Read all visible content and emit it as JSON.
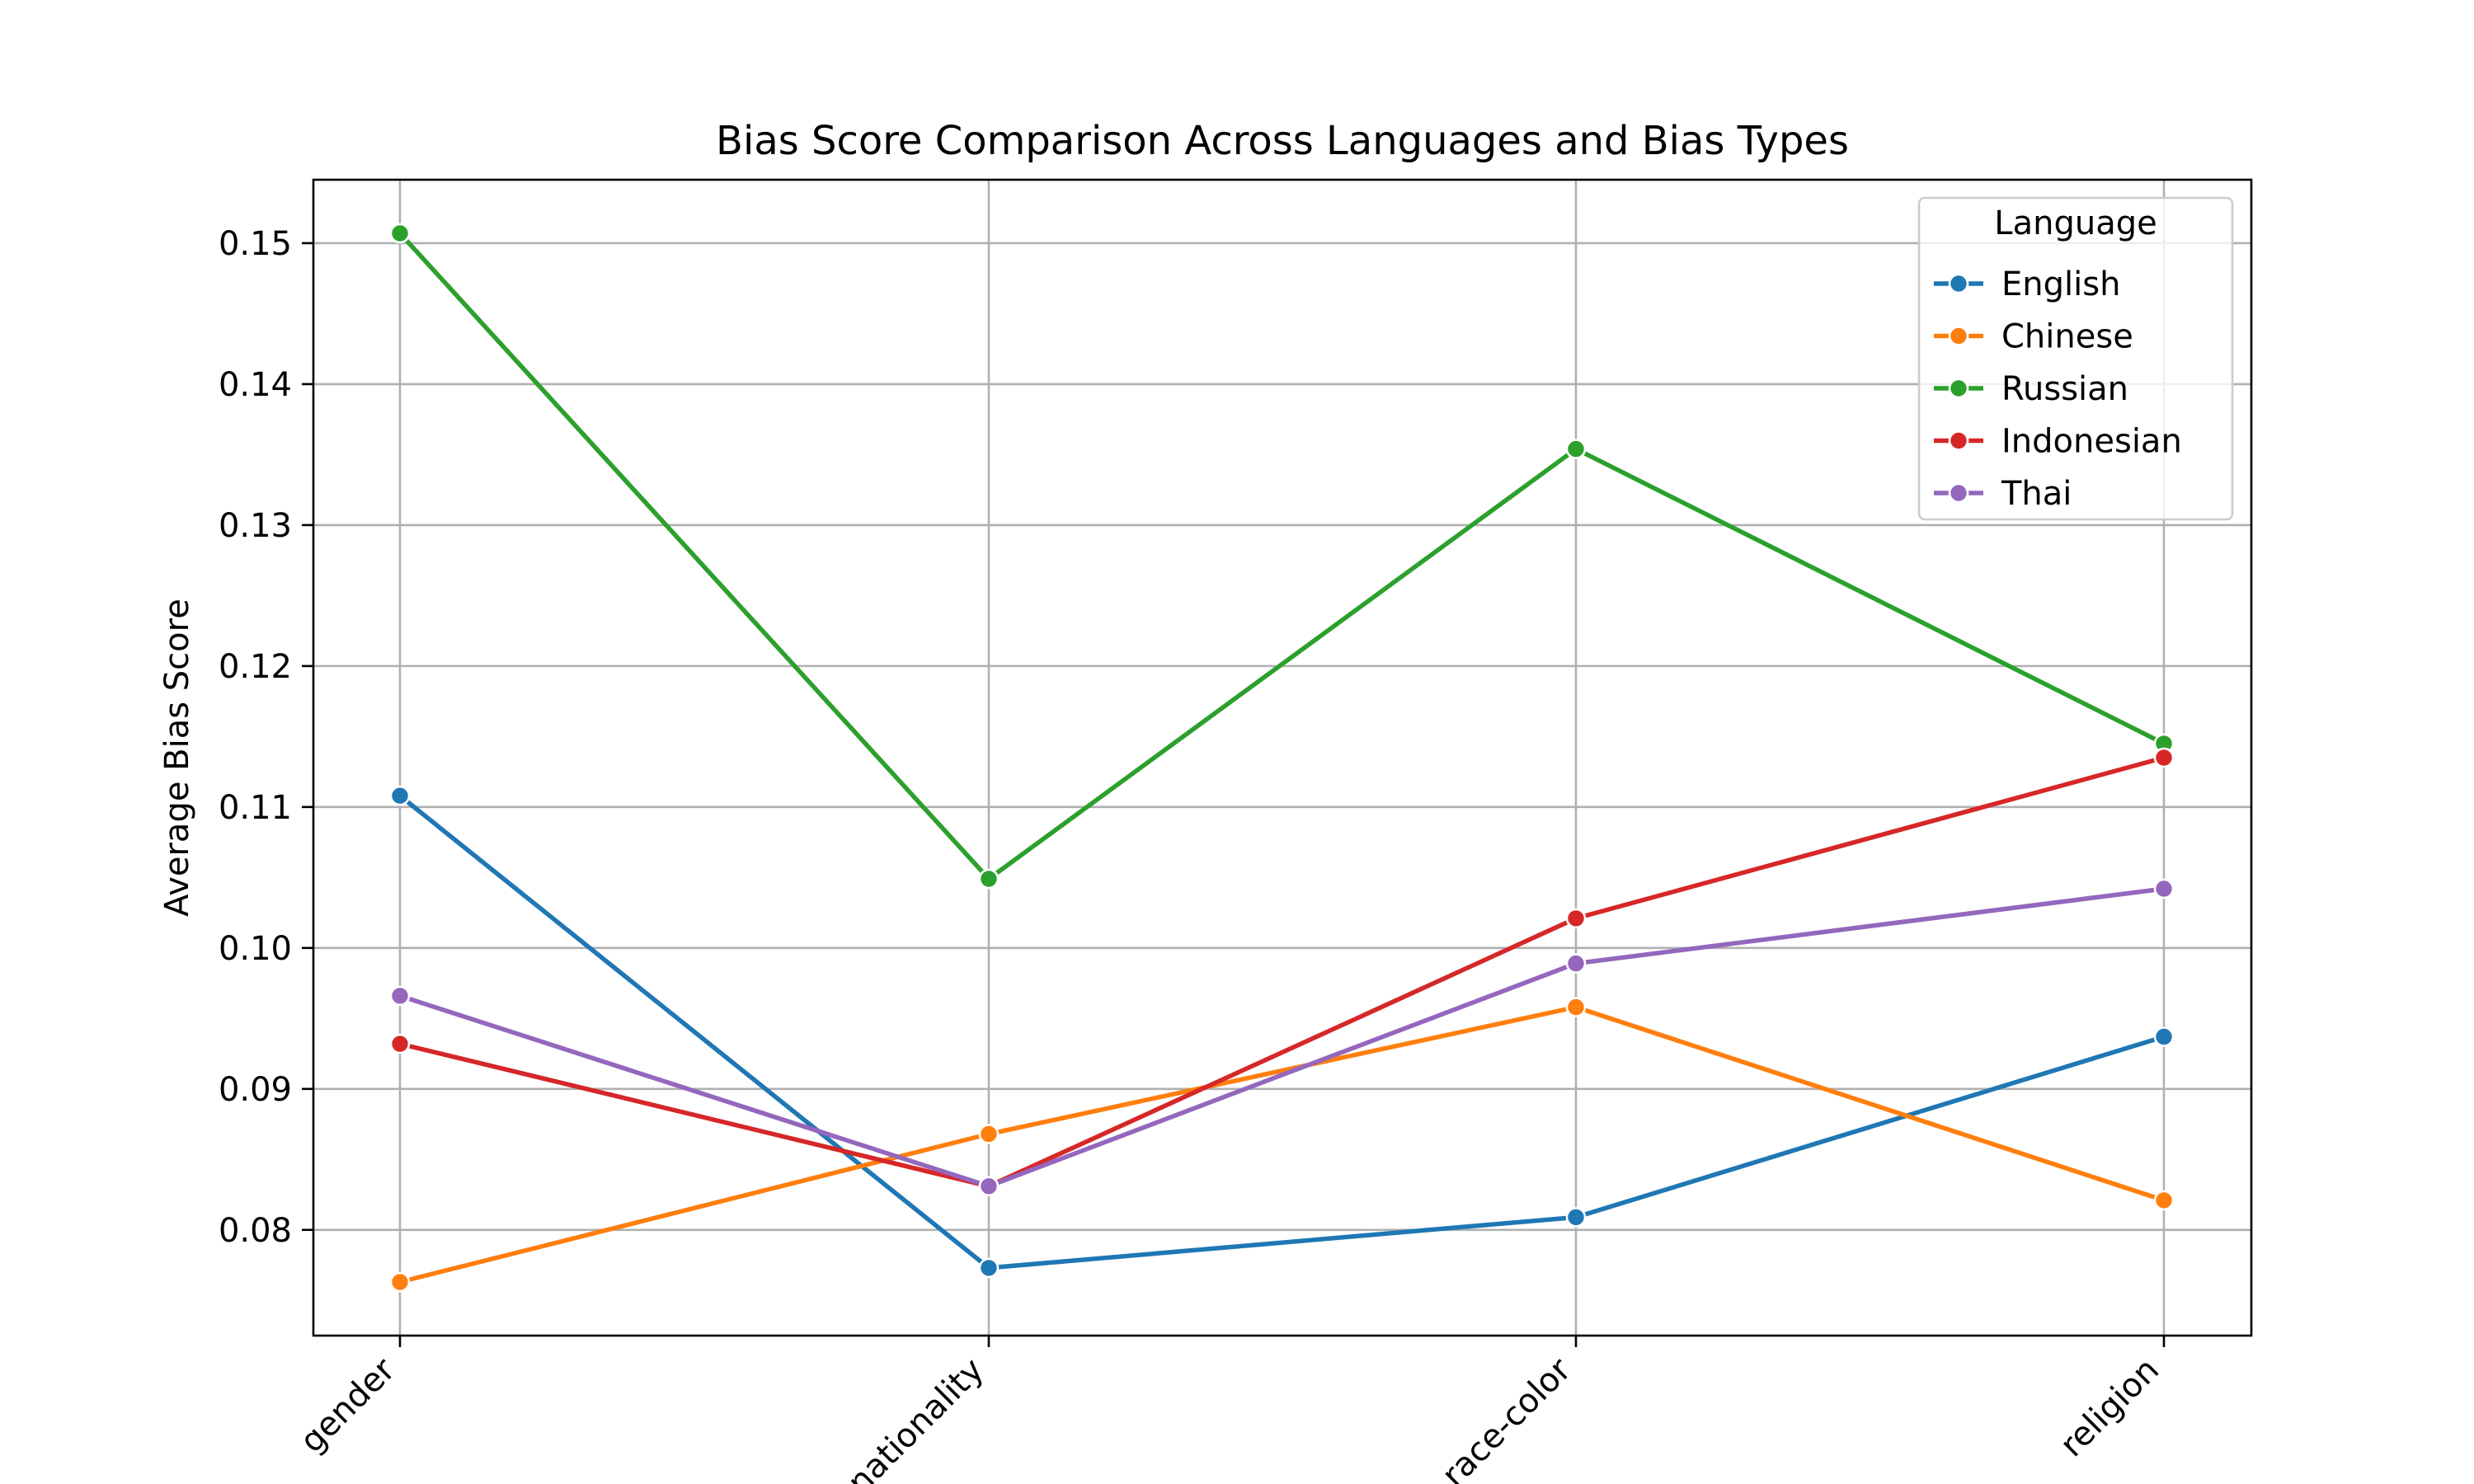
{
  "chart_data": {
    "type": "line",
    "title": "Bias Score Comparison Across Languages and Bias Types",
    "xlabel": "",
    "ylabel": "Average Bias Score",
    "categories": [
      "gender",
      "nationality",
      "race-color",
      "religion"
    ],
    "ylim": [
      0.0725,
      0.1545
    ],
    "yticks": [
      "0.08",
      "0.09",
      "0.10",
      "0.11",
      "0.12",
      "0.13",
      "0.14",
      "0.15"
    ],
    "grid": true,
    "legend": {
      "title": "Language",
      "placement": "top-right"
    },
    "series": [
      {
        "name": "English",
        "color": "#1f77b4",
        "values": [
          0.1108,
          0.0773,
          0.0809,
          0.0937
        ]
      },
      {
        "name": "Chinese",
        "color": "#ff7f0e",
        "values": [
          0.0763,
          0.0868,
          0.0958,
          0.0821
        ]
      },
      {
        "name": "Russian",
        "color": "#2ca02c",
        "values": [
          0.1507,
          0.1049,
          0.1354,
          0.1145
        ]
      },
      {
        "name": "Indonesian",
        "color": "#d62728",
        "values": [
          0.0932,
          0.0831,
          0.1021,
          0.1135
        ]
      },
      {
        "name": "Thai",
        "color": "#9467bd",
        "values": [
          0.0966,
          0.0831,
          0.0989,
          0.1042
        ]
      }
    ]
  }
}
